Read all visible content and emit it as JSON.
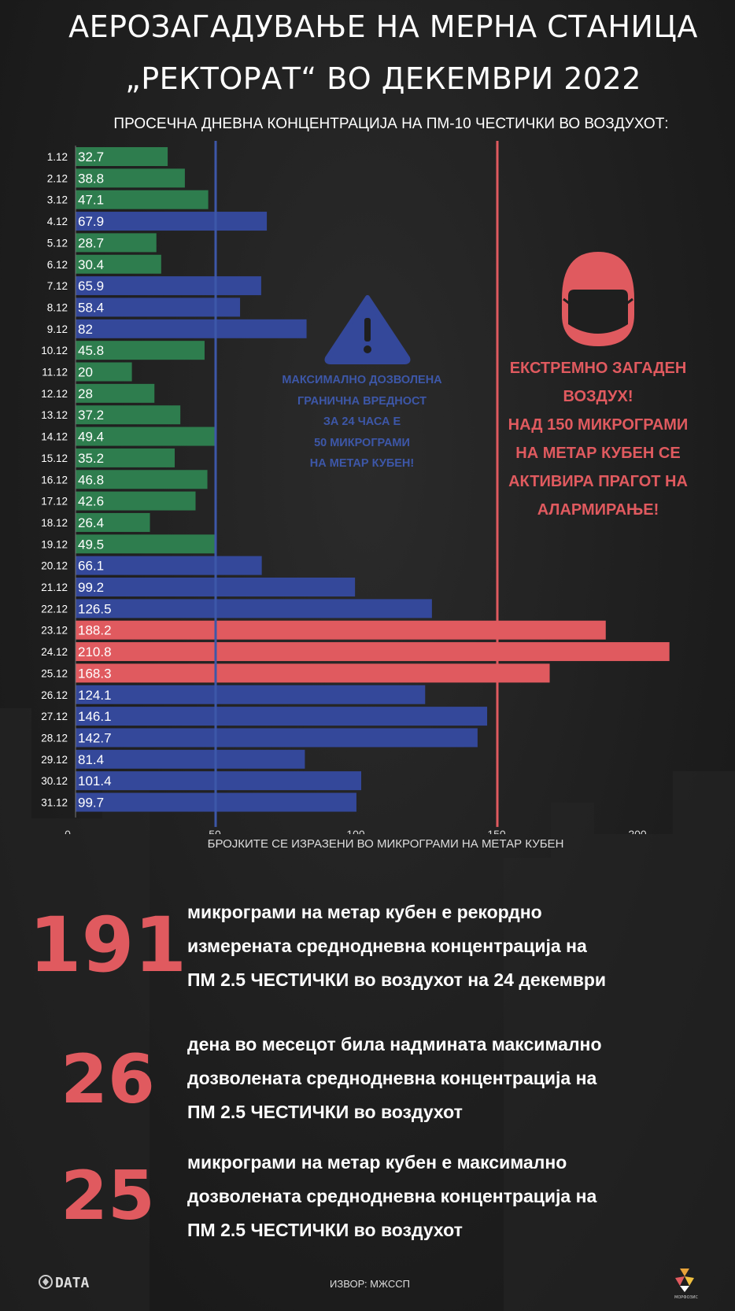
{
  "header": {
    "title_line1": "АЕРОЗАГАДУВАЊЕ НА МЕРНА СТАНИЦА",
    "title_line2": "„РЕКТОРАТ“ ВО ДЕКЕМВРИ 2022",
    "subtitle": "ПРОСЕЧНА ДНЕВНА КОНЦЕНТРАЦИЈА НА ПМ-10 ЧЕСТИЧКИ ВО ВОЗДУХОТ:"
  },
  "chart_data": {
    "type": "bar",
    "orientation": "horizontal",
    "categories": [
      "1.12",
      "2.12",
      "3.12",
      "4.12",
      "5.12",
      "6.12",
      "7.12",
      "8.12",
      "9.12",
      "10.12",
      "11.12",
      "12.12",
      "13.12",
      "14.12",
      "15.12",
      "16.12",
      "17.12",
      "18.12",
      "19.12",
      "20.12",
      "21.12",
      "22.12",
      "23.12",
      "24.12",
      "25.12",
      "26.12",
      "27.12",
      "28.12",
      "29.12",
      "30.12",
      "31.12"
    ],
    "values": [
      32.7,
      38.8,
      47.1,
      67.9,
      28.7,
      30.4,
      65.9,
      58.4,
      82,
      45.8,
      20,
      28,
      37.2,
      49.4,
      35.2,
      46.8,
      42.6,
      26.4,
      49.5,
      66.1,
      99.2,
      126.5,
      188.2,
      210.8,
      168.3,
      124.1,
      146.1,
      142.7,
      81.4,
      101.4,
      99.7
    ],
    "xlim": [
      0,
      220
    ],
    "xticks": [
      0,
      50,
      100,
      150,
      200
    ],
    "xlabel": "БРОЈКИТЕ СЕ ИЗРАЗЕНИ ВО МИКРОГРАМИ НА МЕТАР КУБЕН",
    "ylabel": "",
    "grid": false,
    "reference_lines": [
      {
        "value": 50,
        "color": "#3d57a8"
      },
      {
        "value": 150,
        "color": "#e05a5f"
      }
    ],
    "colors": {
      "low": "#2e7d4e",
      "medium": "#34489a",
      "high": "#e05a5f"
    }
  },
  "annotations": {
    "limit_lines": [
      "МАКСИМАЛНО ДОЗВОЛЕНА",
      "ГРАНИЧНА ВРЕДНОСТ",
      "ЗА 24 ЧАСА Е",
      "50 МИКРОГРАМИ",
      "НА МЕТАР КУБЕН!"
    ],
    "alarm_lines": [
      "ЕКСТРЕМНО ЗАГАДЕН",
      "ВОЗДУХ!",
      "НАД 150 МИКРОГРАМИ",
      "НА МЕТАР КУБЕН СЕ",
      "АКТИВИРА ПРАГОТ НА",
      "АЛАРМИРАЊЕ!"
    ]
  },
  "stats": [
    {
      "number": "191",
      "lines": [
        "микрограми на метар кубен е рекордно",
        "измерената среднодневна концентрација на",
        "ПМ 2.5 ЧЕСТИЧКИ во воздухот на 24 декември"
      ]
    },
    {
      "number": "26",
      "lines": [
        "дена во месецот била надмината максимално",
        "дозволената среднодневна концентрација на",
        "ПМ 2.5 ЧЕСТИЧКИ во воздухот"
      ]
    },
    {
      "number": "25",
      "lines": [
        "микрограми на метар кубен е максимално",
        "дозволената среднодневна концентрација на",
        "ПМ 2.5 ЧЕСТИЧКИ во воздухот"
      ]
    }
  ],
  "footer": {
    "source": "ИЗВОР: МЖССП",
    "logo_left": "DATA",
    "logo_right": "МОРФОЗИС"
  },
  "icons": {
    "warning": "warning-triangle-icon",
    "mask": "face-mask-icon"
  }
}
